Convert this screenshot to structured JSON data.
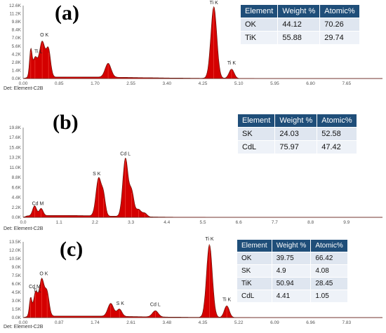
{
  "table_headers": [
    "Element",
    "Weight %",
    "Atomic%"
  ],
  "colors": {
    "fill": "#d40000",
    "edge": "#6b1a10",
    "axis": "#666666",
    "table_header": "#1f4e79"
  },
  "chart_data": [
    {
      "type": "area",
      "panel": "(a)",
      "footer": "Det: Element-C2B",
      "x_ticks": [
        "0.00",
        "0.85",
        "1.70",
        "2.55",
        "3.40",
        "4.25",
        "5.10",
        "5.95",
        "6.80",
        "7.65"
      ],
      "y_ticks": [
        "0.0K",
        "1.4K",
        "2.8K",
        "4.2K",
        "5.6K",
        "7.0K",
        "8.4K",
        "9.8K",
        "11.2K",
        "12.6K"
      ],
      "xlim": [
        0,
        8.5
      ],
      "ylim": [
        0,
        12.6
      ],
      "peaks": [
        {
          "x": 0.18,
          "y": 4.6,
          "w": 0.03
        },
        {
          "x": 0.28,
          "y": 3.2,
          "w": 0.05
        },
        {
          "x": 0.45,
          "y": 6.2,
          "w": 0.07
        },
        {
          "x": 0.6,
          "y": 4.5,
          "w": 0.05
        },
        {
          "x": 2.01,
          "y": 2.4,
          "w": 0.07
        },
        {
          "x": 4.51,
          "y": 12.4,
          "w": 0.07
        },
        {
          "x": 4.93,
          "y": 1.6,
          "w": 0.06
        }
      ],
      "labels": [
        {
          "text": "O  K",
          "x": 0.5,
          "y": 7.0
        },
        {
          "text": "Ti L",
          "x": 0.36,
          "y": 4.2
        },
        {
          "text": "Ti K",
          "x": 4.51,
          "y": 12.6
        },
        {
          "text": "Ti K",
          "x": 4.93,
          "y": 2.2
        }
      ],
      "table": [
        [
          "OK",
          "44.12",
          "70.26"
        ],
        [
          "TiK",
          "55.88",
          "29.74"
        ]
      ]
    },
    {
      "type": "area",
      "panel": "(b)",
      "footer": "Det: Element-C2B",
      "x_ticks": [
        "0.0",
        "1.1",
        "2.2",
        "3.3",
        "4.4",
        "5.5",
        "6.6",
        "7.7",
        "8.8",
        "9.9"
      ],
      "y_ticks": [
        "0.0K",
        "2.2K",
        "4.4K",
        "6.6K",
        "8.8K",
        "11.0K",
        "13.2K",
        "15.4K",
        "17.6K",
        "19.8K"
      ],
      "xlim": [
        0,
        11.0
      ],
      "ylim": [
        0,
        19.8
      ],
      "peaks": [
        {
          "x": 0.35,
          "y": 2.2,
          "w": 0.06
        },
        {
          "x": 0.55,
          "y": 1.6,
          "w": 0.06
        },
        {
          "x": 2.31,
          "y": 8.3,
          "w": 0.08
        },
        {
          "x": 2.46,
          "y": 4.2,
          "w": 0.06
        },
        {
          "x": 3.13,
          "y": 12.8,
          "w": 0.08
        },
        {
          "x": 3.32,
          "y": 5.4,
          "w": 0.07
        },
        {
          "x": 3.53,
          "y": 1.6,
          "w": 0.08
        },
        {
          "x": 3.72,
          "y": 0.8,
          "w": 0.07
        }
      ],
      "labels": [
        {
          "text": "Cd M",
          "x": 0.45,
          "y": 2.4
        },
        {
          "text": "S  K",
          "x": 2.25,
          "y": 9.0
        },
        {
          "text": "Cd L",
          "x": 3.13,
          "y": 13.4
        }
      ],
      "table": [
        [
          "SK",
          "24.03",
          "52.58"
        ],
        [
          "CdL",
          "75.97",
          "47.42"
        ]
      ]
    },
    {
      "type": "area",
      "panel": "(c)",
      "footer": "Det: Element-C2B",
      "x_ticks": [
        "0.00",
        "0.87",
        "1.74",
        "2.61",
        "3.48",
        "4.35",
        "5.22",
        "6.09",
        "6.96",
        "7.83"
      ],
      "y_ticks": [
        "0.0K",
        "1.5K",
        "3.0K",
        "4.5K",
        "6.0K",
        "7.5K",
        "9.0K",
        "10.5K",
        "12.0K",
        "13.5K"
      ],
      "xlim": [
        0,
        8.7
      ],
      "ylim": [
        0,
        13.5
      ],
      "peaks": [
        {
          "x": 0.18,
          "y": 3.2,
          "w": 0.03
        },
        {
          "x": 0.3,
          "y": 4.2,
          "w": 0.05
        },
        {
          "x": 0.45,
          "y": 6.6,
          "w": 0.06
        },
        {
          "x": 0.58,
          "y": 4.0,
          "w": 0.05
        },
        {
          "x": 2.12,
          "y": 2.3,
          "w": 0.07
        },
        {
          "x": 2.33,
          "y": 1.3,
          "w": 0.06
        },
        {
          "x": 3.2,
          "y": 1.1,
          "w": 0.07
        },
        {
          "x": 4.51,
          "y": 13.0,
          "w": 0.07
        },
        {
          "x": 4.93,
          "y": 2.1,
          "w": 0.06
        }
      ],
      "labels": [
        {
          "text": "O  K",
          "x": 0.5,
          "y": 7.3
        },
        {
          "text": "Cd M",
          "x": 0.28,
          "y": 5.0
        },
        {
          "text": "Ti L",
          "x": 0.34,
          "y": 4.3
        },
        {
          "text": "S  K",
          "x": 2.35,
          "y": 2.0
        },
        {
          "text": "Cd L",
          "x": 3.2,
          "y": 1.8
        },
        {
          "text": "Ti K",
          "x": 4.51,
          "y": 13.5
        },
        {
          "text": "Ti K",
          "x": 4.93,
          "y": 2.7
        }
      ],
      "table": [
        [
          "OK",
          "39.75",
          "66.42"
        ],
        [
          "SK",
          "4.9",
          "4.08"
        ],
        [
          "TiK",
          "50.94",
          "28.45"
        ],
        [
          "CdL",
          "4.41",
          "1.05"
        ]
      ]
    }
  ]
}
